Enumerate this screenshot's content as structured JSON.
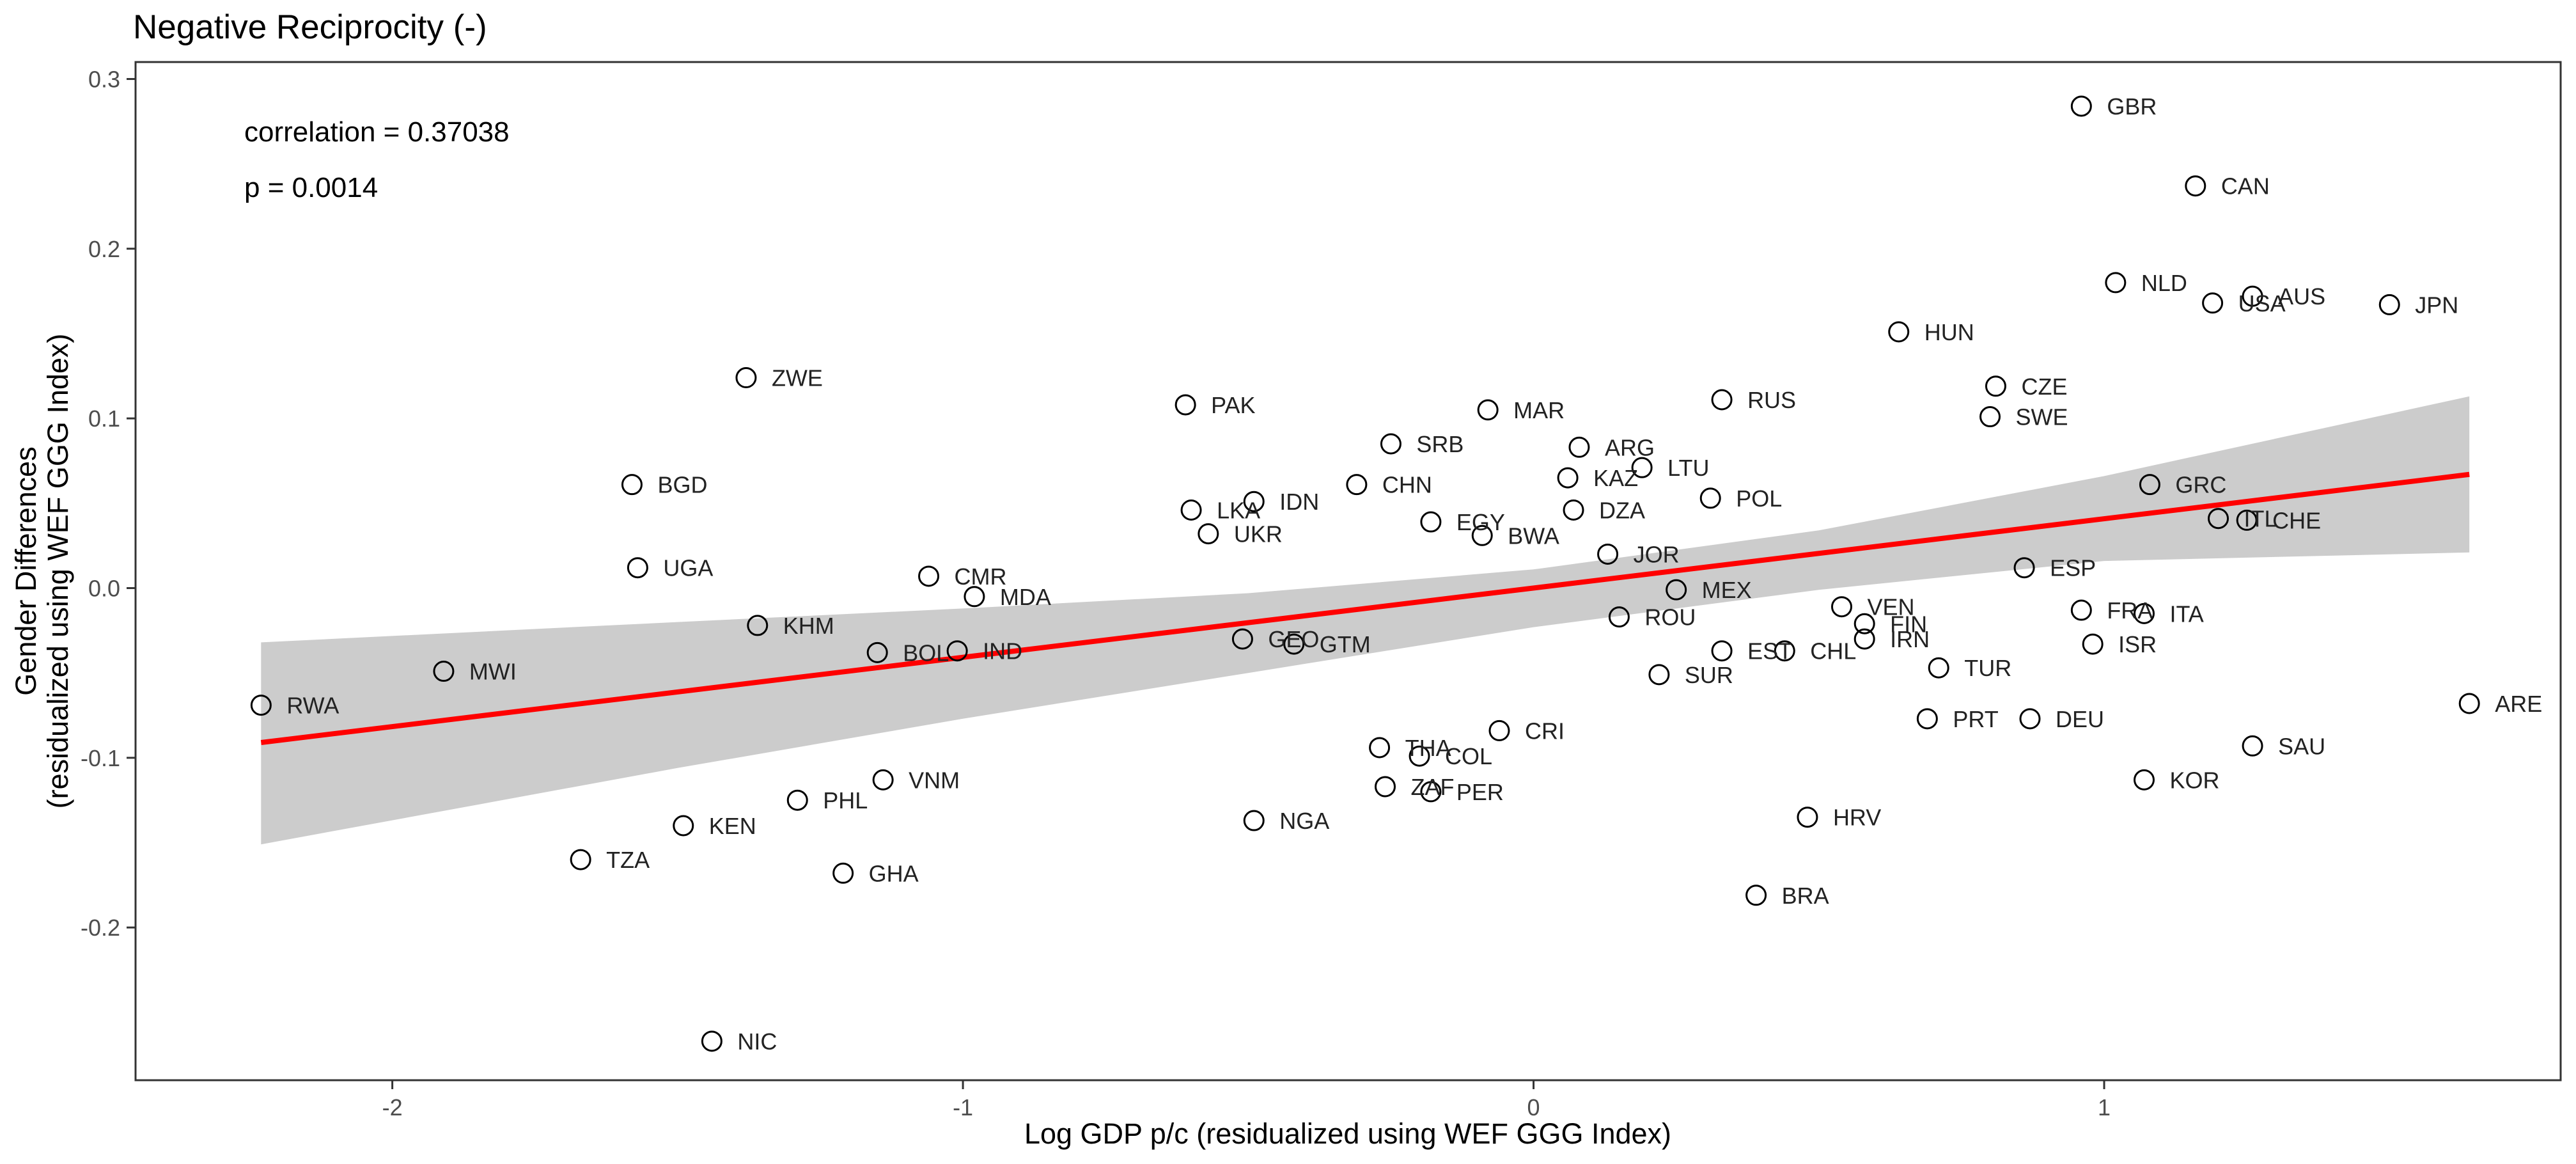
{
  "chart_data": {
    "type": "scatter",
    "title": "Negative Reciprocity (-)",
    "xlabel": "Log GDP p/c (residualized using WEF GGG Index)",
    "ylabel_line1": "Gender Differences",
    "ylabel_line2": "(residualized using WEF GGG Index)",
    "xlim": [
      -2.45,
      1.8
    ],
    "ylim": [
      -0.29,
      0.31
    ],
    "x_ticks": [
      -2,
      -1,
      0,
      1
    ],
    "x_tick_labels": [
      "-2",
      "-1",
      "0",
      "1"
    ],
    "y_ticks": [
      -0.2,
      -0.1,
      0.0,
      0.1,
      0.2,
      0.3
    ],
    "y_tick_labels": [
      "-0.2",
      "-0.1",
      "0.0",
      "0.1",
      "0.2",
      "0.3"
    ],
    "grid": false,
    "annotations": [
      "correlation = 0.37038",
      "p = 0.0014"
    ],
    "regression": {
      "x": [
        -2.23,
        1.64
      ],
      "y": [
        -0.091,
        0.067
      ],
      "color": "#ff0000",
      "band_color": "#cccccc",
      "band": [
        {
          "x": -2.23,
          "lower": -0.151,
          "upper": -0.032
        },
        {
          "x": -1.5,
          "lower": -0.106,
          "upper": -0.02
        },
        {
          "x": -1.0,
          "lower": -0.077,
          "upper": -0.012
        },
        {
          "x": -0.5,
          "lower": -0.05,
          "upper": -0.003
        },
        {
          "x": 0.0,
          "lower": -0.023,
          "upper": 0.011
        },
        {
          "x": 0.5,
          "lower": -0.001,
          "upper": 0.034
        },
        {
          "x": 1.0,
          "lower": 0.016,
          "upper": 0.066
        },
        {
          "x": 1.64,
          "lower": 0.021,
          "upper": 0.113
        }
      ]
    },
    "points": [
      {
        "label": "GBR",
        "x": 0.96,
        "y": 0.284
      },
      {
        "label": "CAN",
        "x": 1.16,
        "y": 0.237
      },
      {
        "label": "NLD",
        "x": 1.02,
        "y": 0.18
      },
      {
        "label": "USA",
        "x": 1.19,
        "y": 0.168
      },
      {
        "label": "AUS",
        "x": 1.26,
        "y": 0.172
      },
      {
        "label": "JPN",
        "x": 1.5,
        "y": 0.167
      },
      {
        "label": "HUN",
        "x": 0.64,
        "y": 0.151
      },
      {
        "label": "CZE",
        "x": 0.81,
        "y": 0.119
      },
      {
        "label": "SWE",
        "x": 0.8,
        "y": 0.101
      },
      {
        "label": "RUS",
        "x": 0.33,
        "y": 0.111
      },
      {
        "label": "ZWE",
        "x": -1.38,
        "y": 0.124
      },
      {
        "label": "PAK",
        "x": -0.61,
        "y": 0.108
      },
      {
        "label": "MAR",
        "x": -0.08,
        "y": 0.105
      },
      {
        "label": "SRB",
        "x": -0.25,
        "y": 0.085
      },
      {
        "label": "ARG",
        "x": 0.08,
        "y": 0.083
      },
      {
        "label": "LTU",
        "x": 0.19,
        "y": 0.071
      },
      {
        "label": "KAZ",
        "x": 0.06,
        "y": 0.065
      },
      {
        "label": "BGD",
        "x": -1.58,
        "y": 0.061
      },
      {
        "label": "CHN",
        "x": -0.31,
        "y": 0.061
      },
      {
        "label": "POL",
        "x": 0.31,
        "y": 0.053
      },
      {
        "label": "IDN",
        "x": -0.49,
        "y": 0.051
      },
      {
        "label": "LKA",
        "x": -0.6,
        "y": 0.046
      },
      {
        "label": "DZA",
        "x": 0.07,
        "y": 0.046
      },
      {
        "label": "GRC",
        "x": 1.08,
        "y": 0.061
      },
      {
        "label": "EGY",
        "x": -0.18,
        "y": 0.039
      },
      {
        "label": "UKR",
        "x": -0.57,
        "y": 0.032
      },
      {
        "label": "BWA",
        "x": -0.09,
        "y": 0.031
      },
      {
        "label": "ITL",
        "x": 1.2,
        "y": 0.041
      },
      {
        "label": "CHE",
        "x": 1.25,
        "y": 0.04
      },
      {
        "label": "JOR",
        "x": 0.13,
        "y": 0.02
      },
      {
        "label": "ESP",
        "x": 0.86,
        "y": 0.012
      },
      {
        "label": "UGA",
        "x": -1.57,
        "y": 0.012
      },
      {
        "label": "CMR",
        "x": -1.06,
        "y": 0.007
      },
      {
        "label": "MDA",
        "x": -0.98,
        "y": -0.005
      },
      {
        "label": "MEX",
        "x": 0.25,
        "y": -0.001
      },
      {
        "label": "VEN",
        "x": 0.54,
        "y": -0.011
      },
      {
        "label": "ROU",
        "x": 0.15,
        "y": -0.017
      },
      {
        "label": "FRA",
        "x": 0.96,
        "y": -0.013
      },
      {
        "label": "ITA",
        "x": 1.07,
        "y": -0.015
      },
      {
        "label": "FIN",
        "x": 0.58,
        "y": -0.021
      },
      {
        "label": "KHM",
        "x": -1.36,
        "y": -0.022
      },
      {
        "label": "IRN",
        "x": 0.58,
        "y": -0.03
      },
      {
        "label": "GEO",
        "x": -0.51,
        "y": -0.03
      },
      {
        "label": "GTM",
        "x": -0.42,
        "y": -0.033
      },
      {
        "label": "ISR",
        "x": 0.98,
        "y": -0.033
      },
      {
        "label": "EST",
        "x": 0.33,
        "y": -0.037
      },
      {
        "label": "CHL",
        "x": 0.44,
        "y": -0.037
      },
      {
        "label": "BOL",
        "x": -1.15,
        "y": -0.038
      },
      {
        "label": "IND",
        "x": -1.01,
        "y": -0.037
      },
      {
        "label": "TUR",
        "x": 0.71,
        "y": -0.047
      },
      {
        "label": "MWI",
        "x": -1.91,
        "y": -0.049
      },
      {
        "label": "SUR",
        "x": 0.22,
        "y": -0.051
      },
      {
        "label": "RWA",
        "x": -2.23,
        "y": -0.069
      },
      {
        "label": "ARE",
        "x": 1.64,
        "y": -0.068
      },
      {
        "label": "PRT",
        "x": 0.69,
        "y": -0.077
      },
      {
        "label": "DEU",
        "x": 0.87,
        "y": -0.077
      },
      {
        "label": "CRI",
        "x": -0.06,
        "y": -0.084
      },
      {
        "label": "SAU",
        "x": 1.26,
        "y": -0.093
      },
      {
        "label": "THA",
        "x": -0.27,
        "y": -0.094
      },
      {
        "label": "COL",
        "x": -0.2,
        "y": -0.099
      },
      {
        "label": "VNM",
        "x": -1.14,
        "y": -0.113
      },
      {
        "label": "KOR",
        "x": 1.07,
        "y": -0.113
      },
      {
        "label": "ZAF",
        "x": -0.26,
        "y": -0.117
      },
      {
        "label": "PER",
        "x": -0.18,
        "y": -0.12
      },
      {
        "label": "PHL",
        "x": -1.29,
        "y": -0.125
      },
      {
        "label": "HRV",
        "x": 0.48,
        "y": -0.135
      },
      {
        "label": "NGA",
        "x": -0.49,
        "y": -0.137
      },
      {
        "label": "KEN",
        "x": -1.49,
        "y": -0.14
      },
      {
        "label": "TZA",
        "x": -1.67,
        "y": -0.16
      },
      {
        "label": "GHA",
        "x": -1.21,
        "y": -0.168
      },
      {
        "label": "BRA",
        "x": 0.39,
        "y": -0.181
      },
      {
        "label": "NIC",
        "x": -1.44,
        "y": -0.267
      }
    ]
  }
}
